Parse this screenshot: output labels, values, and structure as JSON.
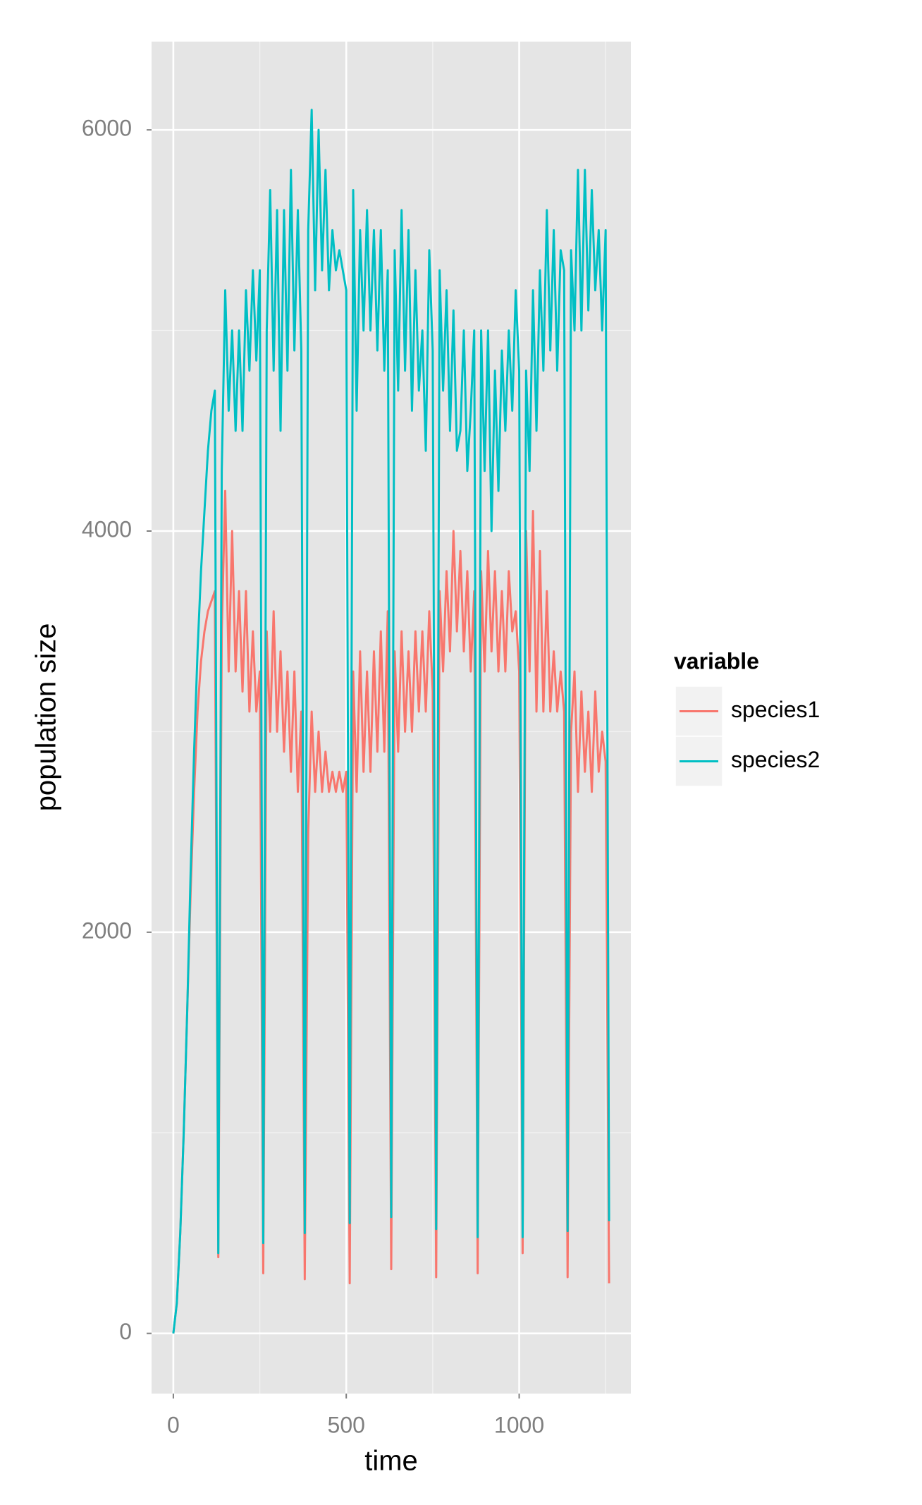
{
  "chart_data": {
    "type": "line",
    "x_label": "time",
    "y_label": "population size",
    "legend_title": "variable",
    "legend_position": "right",
    "xlim": [
      -63,
      1323
    ],
    "ylim": [
      -300,
      6440
    ],
    "xticks": [
      0,
      500,
      1000
    ],
    "yticks": [
      0,
      2000,
      4000,
      6000
    ],
    "x_minor_grid": [
      250,
      750,
      1250
    ],
    "y_minor_grid": [
      1000,
      3000,
      5000
    ],
    "grid": true,
    "x": [
      0,
      10,
      20,
      30,
      40,
      50,
      60,
      70,
      80,
      90,
      100,
      110,
      120,
      130,
      140,
      150,
      160,
      170,
      180,
      190,
      200,
      210,
      220,
      230,
      240,
      250,
      260,
      270,
      280,
      290,
      300,
      310,
      320,
      330,
      340,
      350,
      360,
      370,
      380,
      390,
      400,
      410,
      420,
      430,
      440,
      450,
      460,
      470,
      480,
      490,
      500,
      510,
      520,
      530,
      540,
      550,
      560,
      570,
      580,
      590,
      600,
      610,
      620,
      630,
      640,
      650,
      660,
      670,
      680,
      690,
      700,
      710,
      720,
      730,
      740,
      750,
      760,
      770,
      780,
      790,
      800,
      810,
      820,
      830,
      840,
      850,
      860,
      870,
      880,
      890,
      900,
      910,
      920,
      930,
      940,
      950,
      960,
      970,
      980,
      990,
      1000,
      1010,
      1020,
      1030,
      1040,
      1050,
      1060,
      1070,
      1080,
      1090,
      1100,
      1110,
      1120,
      1130,
      1140,
      1150,
      1160,
      1170,
      1180,
      1190,
      1200,
      1210,
      1220,
      1230,
      1240,
      1250,
      1260
    ],
    "series": [
      {
        "name": "species1",
        "color": "#f8766d",
        "values": [
          0,
          150,
          500,
          1000,
          1600,
          2200,
          2700,
          3100,
          3350,
          3500,
          3600,
          3650,
          3700,
          380,
          3500,
          4200,
          3300,
          4000,
          3300,
          3700,
          3200,
          3700,
          3100,
          3500,
          3100,
          3300,
          300,
          3500,
          3000,
          3600,
          3000,
          3400,
          2900,
          3300,
          2800,
          3300,
          2700,
          3100,
          270,
          2500,
          3100,
          2700,
          3000,
          2700,
          2900,
          2700,
          2800,
          2700,
          2800,
          2700,
          2800,
          250,
          3300,
          2700,
          3400,
          2800,
          3300,
          2800,
          3400,
          2900,
          3500,
          2900,
          3600,
          320,
          3400,
          2900,
          3500,
          3000,
          3400,
          3000,
          3500,
          3100,
          3500,
          3100,
          3600,
          3200,
          280,
          3700,
          3300,
          3800,
          3400,
          4000,
          3500,
          3900,
          3400,
          3800,
          3300,
          3700,
          300,
          3800,
          3300,
          3900,
          3400,
          3800,
          3300,
          3700,
          3300,
          3800,
          3500,
          3600,
          3300,
          400,
          4000,
          3300,
          4100,
          3100,
          3900,
          3100,
          3700,
          3100,
          3400,
          3100,
          3300,
          3100,
          280,
          3000,
          3300,
          2700,
          3200,
          2800,
          3100,
          2700,
          3200,
          2800,
          3000,
          2850,
          250
        ]
      },
      {
        "name": "species2",
        "color": "#00bfc4",
        "values": [
          0,
          150,
          500,
          1000,
          1600,
          2300,
          2900,
          3400,
          3800,
          4100,
          4400,
          4600,
          4700,
          400,
          4300,
          5200,
          4600,
          5000,
          4500,
          5000,
          4500,
          5200,
          4800,
          5300,
          4850,
          5300,
          450,
          5000,
          5700,
          4800,
          5600,
          4500,
          5600,
          4800,
          5800,
          4900,
          5600,
          4900,
          500,
          5500,
          6100,
          5200,
          6000,
          5300,
          5800,
          5200,
          5500,
          5300,
          5400,
          5300,
          5200,
          550,
          5700,
          4600,
          5500,
          5000,
          5600,
          5000,
          5500,
          4900,
          5500,
          4800,
          5300,
          580,
          5400,
          4700,
          5600,
          4800,
          5500,
          4600,
          5300,
          4700,
          5000,
          4400,
          5400,
          4900,
          520,
          5300,
          4700,
          5200,
          4500,
          5100,
          4400,
          4500,
          5000,
          4300,
          4600,
          5000,
          480,
          5000,
          4300,
          5000,
          4000,
          4800,
          4200,
          4900,
          4500,
          5000,
          4600,
          5200,
          4800,
          480,
          4800,
          4300,
          5200,
          4500,
          5300,
          4800,
          5600,
          4900,
          5500,
          4800,
          5400,
          5300,
          510,
          5400,
          5000,
          5800,
          5000,
          5800,
          5100,
          5700,
          5200,
          5500,
          5000,
          5500,
          560
        ]
      }
    ]
  }
}
